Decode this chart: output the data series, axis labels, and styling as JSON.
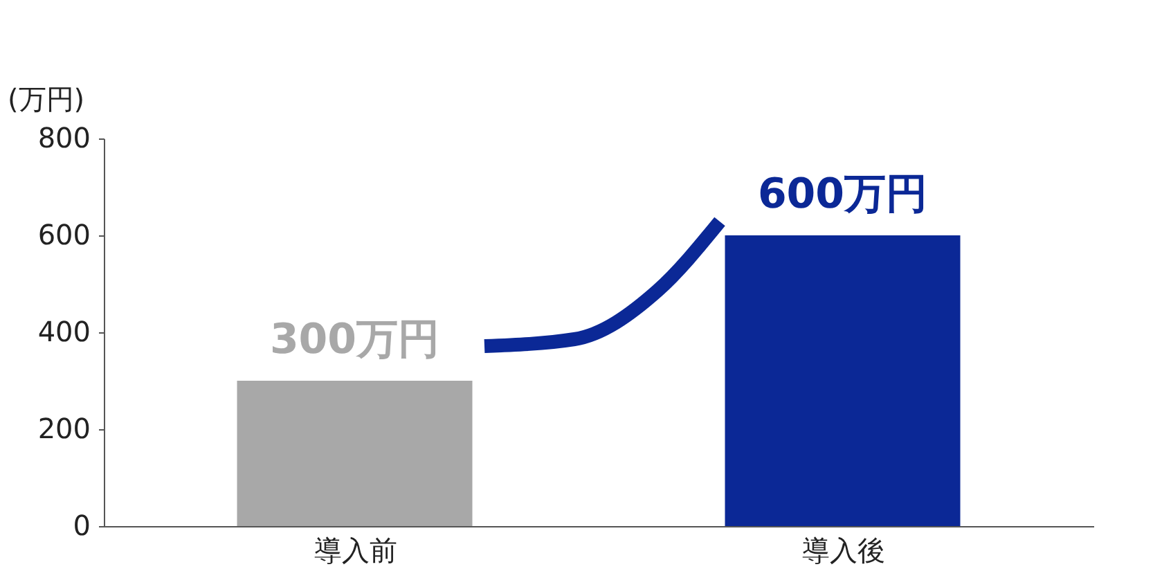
{
  "chart_data": {
    "type": "bar",
    "ylabel": "(万円)",
    "categories": [
      "導入前",
      "導入後"
    ],
    "values": [
      300,
      600
    ],
    "colors": [
      "#a8a8a8",
      "#0b2896"
    ],
    "value_labels": [
      "300万円",
      "600万円"
    ],
    "ylim": [
      0,
      800
    ],
    "yticks": [
      0,
      200,
      400,
      600,
      800
    ],
    "grid": false
  }
}
